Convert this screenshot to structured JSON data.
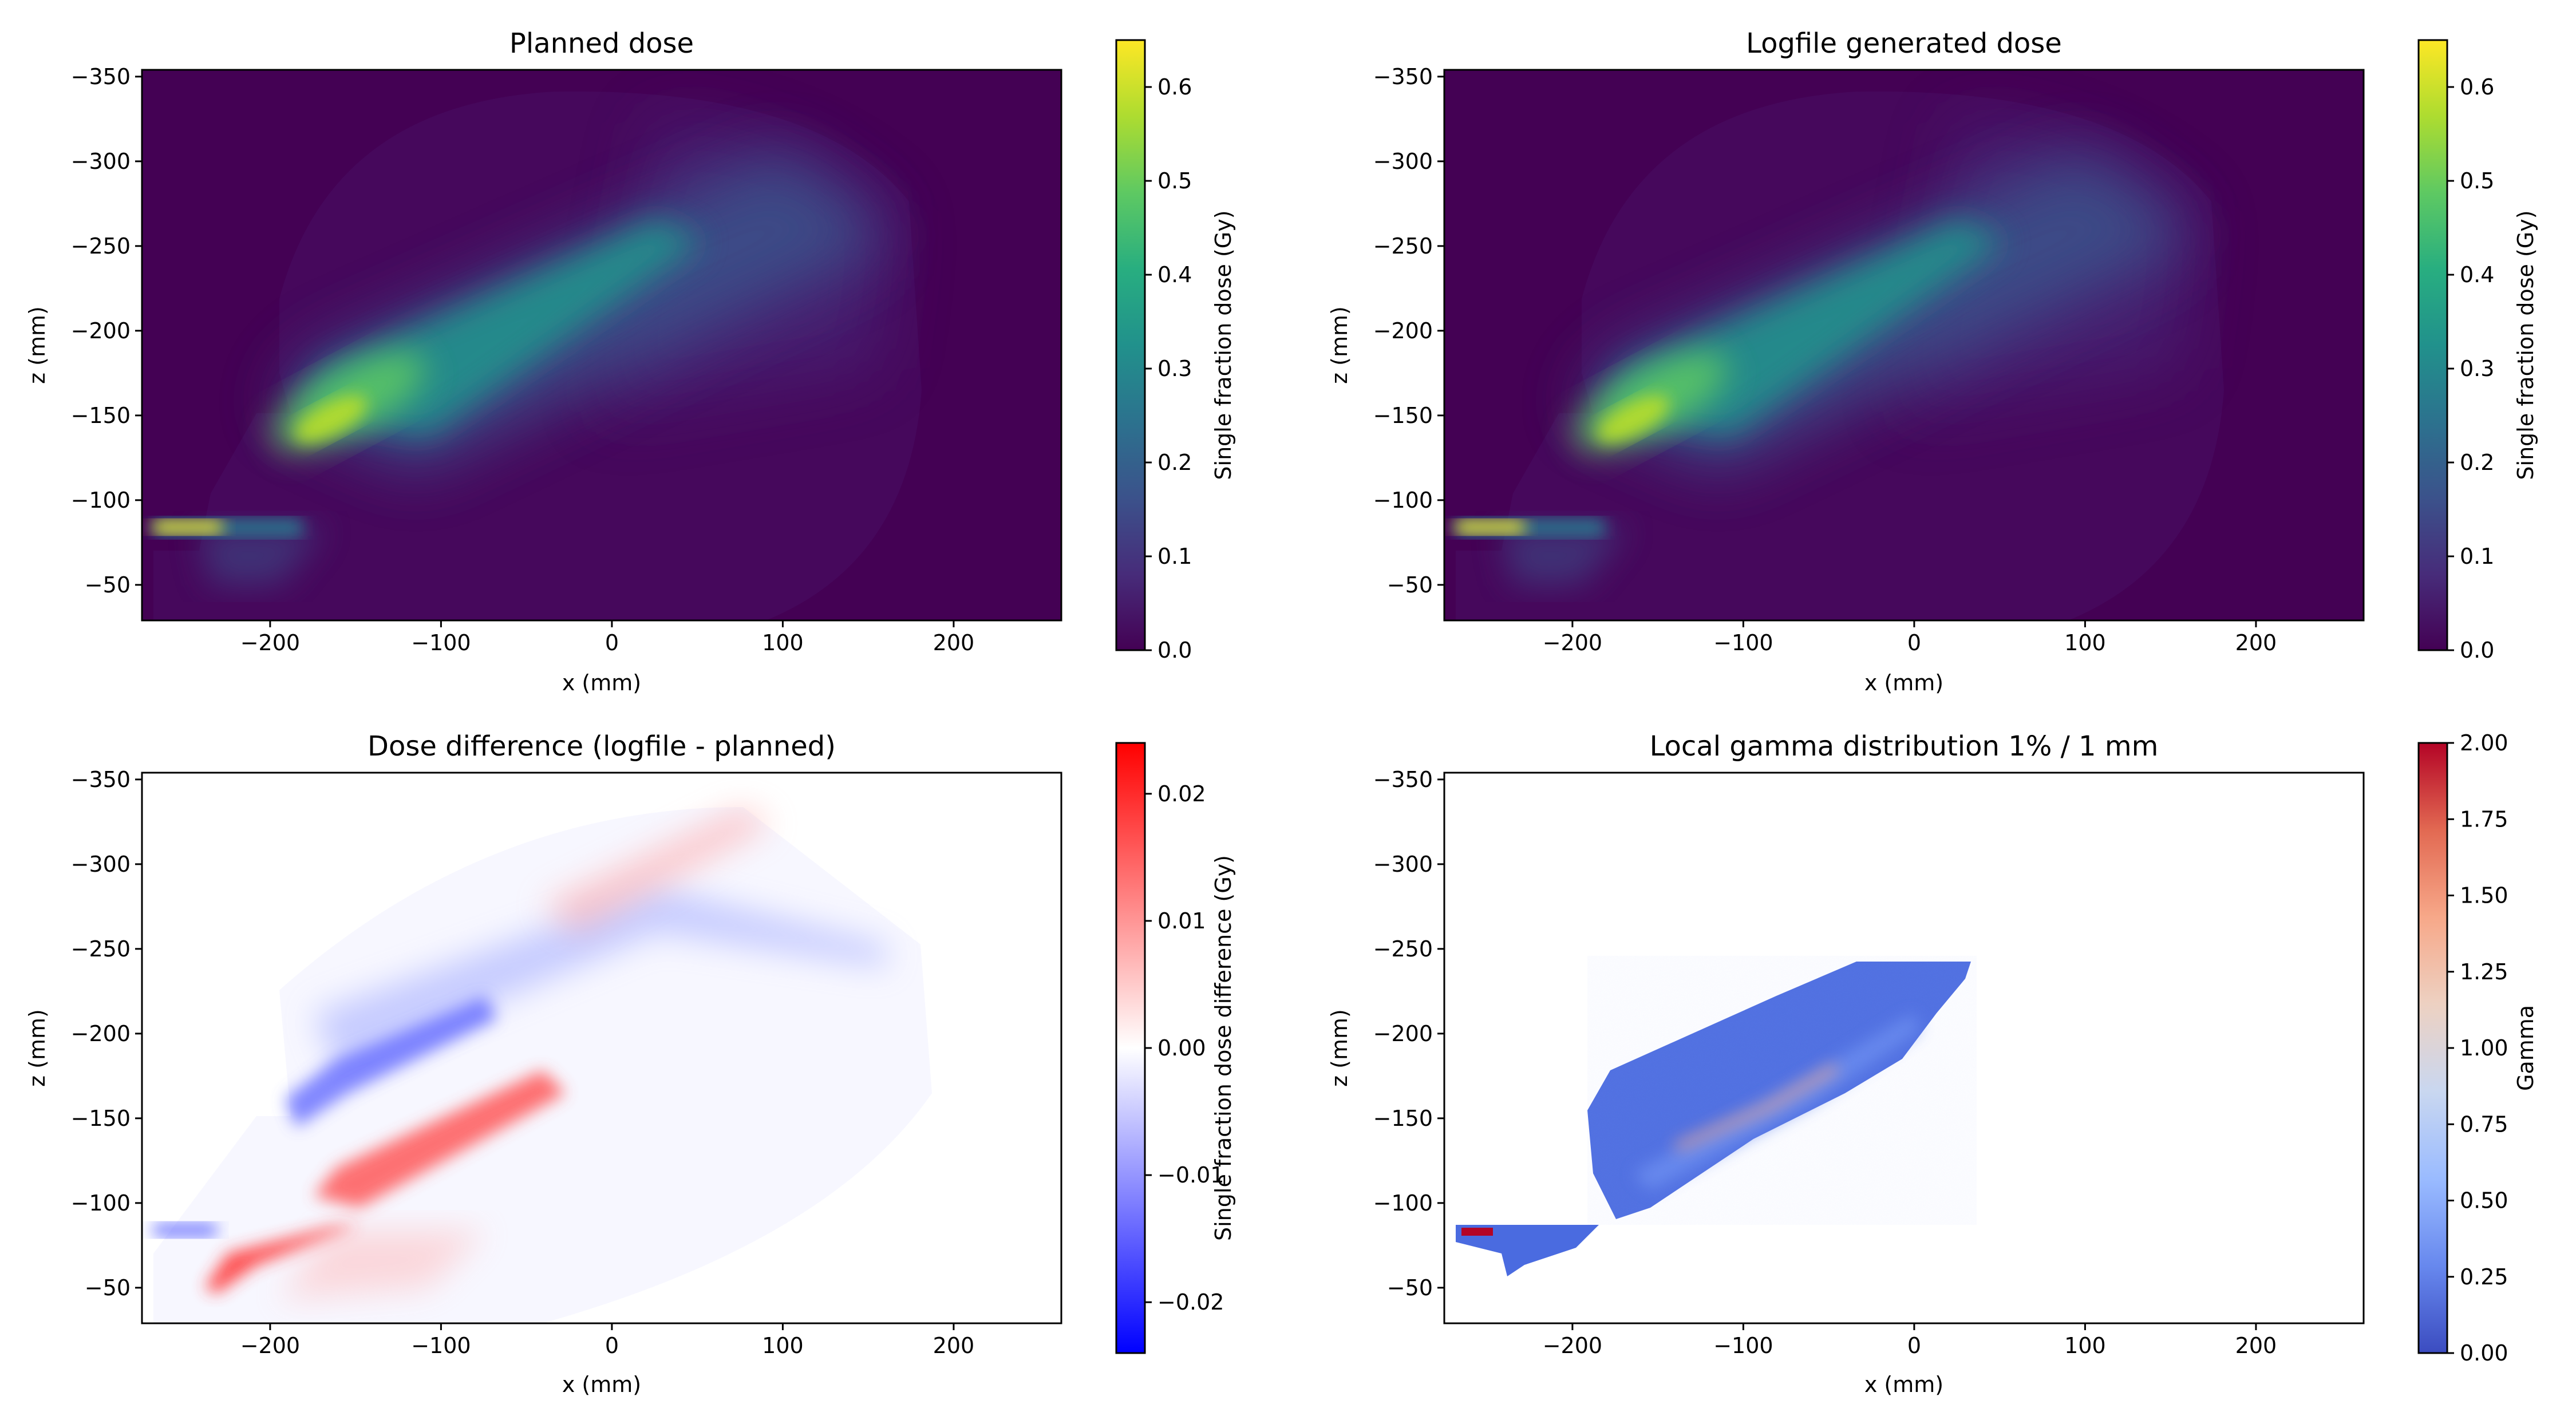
{
  "chart_data": [
    {
      "type": "heatmap",
      "title": "Planned dose",
      "xlabel": "x (mm)",
      "ylabel": "z (mm)",
      "xlim": [
        -275,
        263
      ],
      "ylim": [
        -354,
        -29
      ],
      "x_ticks": [
        -200,
        -100,
        0,
        100,
        200
      ],
      "y_ticks": [
        -350,
        -300,
        -250,
        -200,
        -150,
        -100,
        -50
      ],
      "tick_labels_x": [
        "−200",
        "−100",
        "0",
        "100",
        "200"
      ],
      "tick_labels_y": [
        "−350",
        "−300",
        "−250",
        "−200",
        "−150",
        "−100",
        "−50"
      ],
      "colormap": "viridis",
      "colorbar": {
        "label": "Single fraction dose (Gy)",
        "range": [
          0,
          0.65
        ],
        "ticks": [
          0.0,
          0.1,
          0.2,
          0.3,
          0.4,
          0.5,
          0.6
        ],
        "tick_labels": [
          "0.0",
          "0.1",
          "0.2",
          "0.3",
          "0.4",
          "0.5",
          "0.6"
        ]
      },
      "background_value": 0.0,
      "regions": [
        {
          "name": "field",
          "value": 0.02
        },
        {
          "name": "beam-outer",
          "value": 0.1
        },
        {
          "name": "beam-core",
          "value": 0.3
        },
        {
          "name": "beam-peak",
          "value": 0.45
        },
        {
          "name": "hotspot",
          "value": 0.55
        },
        {
          "name": "entry-strip",
          "value": 0.65
        }
      ]
    },
    {
      "type": "heatmap",
      "title": "Logfile generated dose",
      "xlabel": "x (mm)",
      "ylabel": "z (mm)",
      "xlim": [
        -275,
        263
      ],
      "ylim": [
        -354,
        -29
      ],
      "x_ticks": [
        -200,
        -100,
        0,
        100,
        200
      ],
      "y_ticks": [
        -350,
        -300,
        -250,
        -200,
        -150,
        -100,
        -50
      ],
      "tick_labels_x": [
        "−200",
        "−100",
        "0",
        "100",
        "200"
      ],
      "tick_labels_y": [
        "−350",
        "−300",
        "−250",
        "−200",
        "−150",
        "−100",
        "−50"
      ],
      "colormap": "viridis",
      "colorbar": {
        "label": "Single fraction dose (Gy)",
        "range": [
          0,
          0.65
        ],
        "ticks": [
          0.0,
          0.1,
          0.2,
          0.3,
          0.4,
          0.5,
          0.6
        ],
        "tick_labels": [
          "0.0",
          "0.1",
          "0.2",
          "0.3",
          "0.4",
          "0.5",
          "0.6"
        ]
      },
      "background_value": 0.0,
      "regions": [
        {
          "name": "field",
          "value": 0.02
        },
        {
          "name": "beam-outer",
          "value": 0.1
        },
        {
          "name": "beam-core",
          "value": 0.3
        },
        {
          "name": "beam-peak",
          "value": 0.45
        },
        {
          "name": "hotspot",
          "value": 0.55
        },
        {
          "name": "entry-strip",
          "value": 0.65
        }
      ]
    },
    {
      "type": "heatmap",
      "title": "Dose difference (logfile - planned)",
      "xlabel": "x (mm)",
      "ylabel": "z (mm)",
      "xlim": [
        -275,
        263
      ],
      "ylim": [
        -354,
        -29
      ],
      "x_ticks": [
        -200,
        -100,
        0,
        100,
        200
      ],
      "y_ticks": [
        -350,
        -300,
        -250,
        -200,
        -150,
        -100,
        -50
      ],
      "tick_labels_x": [
        "−200",
        "−100",
        "0",
        "100",
        "200"
      ],
      "tick_labels_y": [
        "−350",
        "−300",
        "−250",
        "−200",
        "−150",
        "−100",
        "−50"
      ],
      "colormap": "bwr",
      "colorbar": {
        "label": "Single fraction dose difference (Gy)",
        "range": [
          -0.024,
          0.024
        ],
        "ticks": [
          -0.02,
          -0.01,
          0.0,
          0.01,
          0.02
        ],
        "tick_labels": [
          "−0.02",
          "−0.01",
          "0.00",
          "0.01",
          "0.02"
        ]
      },
      "background_value": 0.0,
      "regions": [
        {
          "name": "blue-band-upper",
          "value": -0.004
        },
        {
          "name": "blue-band-lower",
          "value": -0.012
        },
        {
          "name": "blue-entry",
          "value": -0.018
        },
        {
          "name": "red-band-upper",
          "value": 0.004
        },
        {
          "name": "red-band-lower",
          "value": 0.018
        },
        {
          "name": "red-entry",
          "value": 0.02
        }
      ]
    },
    {
      "type": "heatmap",
      "title": "Local gamma distribution 1% / 1 mm",
      "xlabel": "x (mm)",
      "ylabel": "z (mm)",
      "xlim": [
        -275,
        263
      ],
      "ylim": [
        -354,
        -29
      ],
      "x_ticks": [
        -200,
        -100,
        0,
        100,
        200
      ],
      "y_ticks": [
        -350,
        -300,
        -250,
        -200,
        -150,
        -100,
        -50
      ],
      "tick_labels_x": [
        "−200",
        "−100",
        "0",
        "100",
        "200"
      ],
      "tick_labels_y": [
        "−350",
        "−300",
        "−250",
        "−200",
        "−150",
        "−100",
        "−50"
      ],
      "colormap": "coolwarm",
      "colorbar": {
        "label": "Gamma",
        "range": [
          0,
          2
        ],
        "ticks": [
          0.0,
          0.25,
          0.5,
          0.75,
          1.0,
          1.25,
          1.5,
          1.75,
          2.0
        ],
        "tick_labels": [
          "0.00",
          "0.25",
          "0.50",
          "0.75",
          "1.00",
          "1.25",
          "1.50",
          "1.75",
          "2.00"
        ]
      },
      "background_value": null,
      "regions": [
        {
          "name": "gamma-region",
          "value": 0.3
        },
        {
          "name": "gamma-band",
          "value": 0.45
        },
        {
          "name": "gamma-hot-line",
          "value": 1.1
        },
        {
          "name": "gamma-entry",
          "value": 0.35
        },
        {
          "name": "gamma-entry-hot",
          "value": 1.9
        }
      ]
    }
  ]
}
